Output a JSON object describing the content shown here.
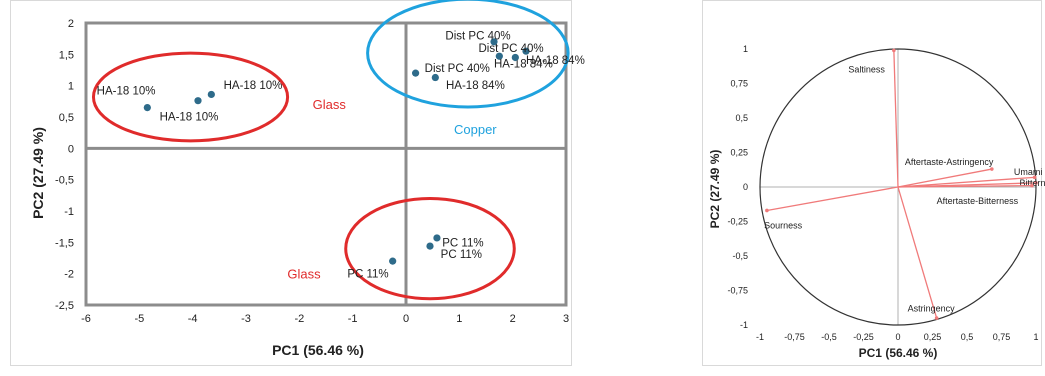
{
  "chart_data": [
    {
      "type": "scatter",
      "xlabel": "PC1 (56.46 %)",
      "ylabel": "PC2 (27.49 %)",
      "xlim": [
        -6,
        3
      ],
      "ylim": [
        -2.5,
        2
      ],
      "xticks": [
        -6,
        -5,
        -4,
        -3,
        -2,
        -1,
        0,
        1,
        2,
        3
      ],
      "yticks": [
        -2.5,
        -2,
        -1.5,
        -1,
        -0.5,
        0,
        0.5,
        1,
        1.5,
        2
      ],
      "grid": false,
      "marker_color": "#2e6b8a",
      "points": [
        {
          "x": -4.85,
          "y": 0.65,
          "label": "HA-18 10%"
        },
        {
          "x": -3.9,
          "y": 0.76,
          "label": "HA-18 10%"
        },
        {
          "x": -3.65,
          "y": 0.86,
          "label": "HA-18 10%"
        },
        {
          "x": 0.18,
          "y": 1.2,
          "label": "Dist PC 40%"
        },
        {
          "x": 1.65,
          "y": 1.7,
          "label": "Dist PC 40%"
        },
        {
          "x": 2.25,
          "y": 1.55,
          "label": "Dist PC 40%"
        },
        {
          "x": 0.55,
          "y": 1.13,
          "label": "HA-18 84%"
        },
        {
          "x": 1.75,
          "y": 1.47,
          "label": "HA-18 84%"
        },
        {
          "x": 2.05,
          "y": 1.45,
          "label": "HA-18 84%"
        },
        {
          "x": -0.25,
          "y": -1.8,
          "label": "PC 11%"
        },
        {
          "x": 0.45,
          "y": -1.56,
          "label": "PC 11%"
        },
        {
          "x": 0.58,
          "y": -1.43,
          "label": "PC 11%"
        }
      ],
      "groups": [
        {
          "label": "Glass",
          "color": "#e02b2b"
        },
        {
          "label": "Copper",
          "color": "#1fa2de"
        },
        {
          "label": "Glass",
          "color": "#e02b2b"
        }
      ]
    },
    {
      "type": "line",
      "xlabel": "PC1 (56.46 %)",
      "ylabel": "PC2 (27.49 %)",
      "xlim": [
        -1,
        1
      ],
      "ylim": [
        -1,
        1
      ],
      "xticks": [
        -1,
        -0.75,
        -0.5,
        -0.25,
        0,
        0.25,
        0.5,
        0.75,
        1
      ],
      "yticks": [
        -1,
        -0.75,
        -0.5,
        -0.25,
        0,
        0.25,
        0.5,
        0.75,
        1
      ],
      "grid": false,
      "vector_color": "#f07a7a",
      "vectors": [
        {
          "label": "Saltiness",
          "x": -0.03,
          "y": 0.99
        },
        {
          "label": "Aftertaste-Astringency",
          "x": 0.68,
          "y": 0.13
        },
        {
          "label": "Umami",
          "x": 0.99,
          "y": 0.07
        },
        {
          "label": "Bitterness",
          "x": 1.0,
          "y": 0.03
        },
        {
          "label": "Aftertaste-Bitterness",
          "x": 0.97,
          "y": 0.01
        },
        {
          "label": "Sourness",
          "x": -0.95,
          "y": -0.17
        },
        {
          "label": "Astringency",
          "x": 0.28,
          "y": -0.95
        }
      ]
    }
  ]
}
